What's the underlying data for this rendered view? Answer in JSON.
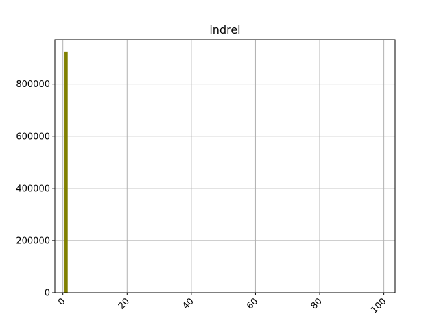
{
  "chart_data": {
    "type": "bar",
    "title": "indrel",
    "xlabel": "",
    "ylabel": "",
    "bins": [
      {
        "x0": 0.5,
        "x1": 1.5,
        "count": 923000
      }
    ],
    "xlim": [
      -2.5,
      103.5
    ],
    "ylim": [
      0,
      970000
    ],
    "xticks": [
      0,
      20,
      40,
      60,
      80,
      100
    ],
    "yticks": [
      0,
      200000,
      400000,
      600000,
      800000
    ],
    "grid": true,
    "legend": "none",
    "xtick_rotation": 45,
    "colors": {
      "bar": "#808000",
      "grid": "#b0b0b0",
      "axes": "#000000"
    }
  }
}
